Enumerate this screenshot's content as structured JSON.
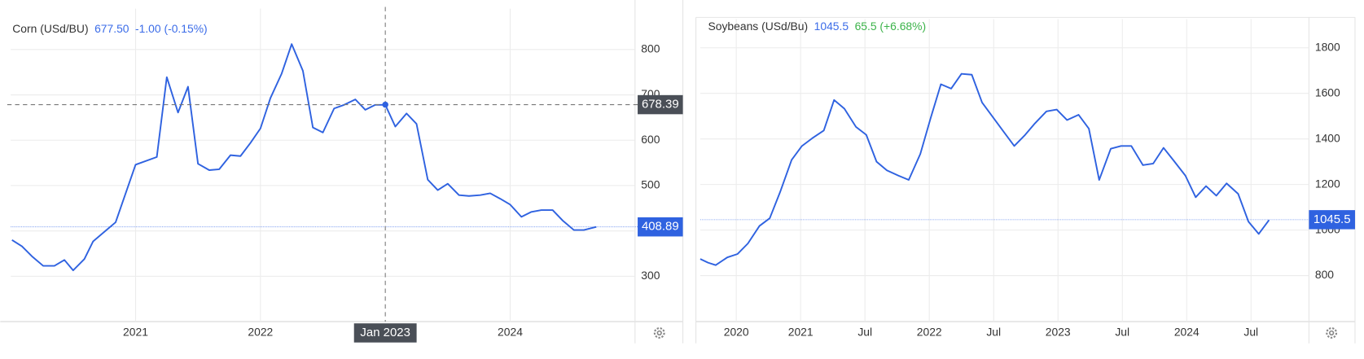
{
  "chart_data": [
    {
      "type": "line",
      "header": {
        "name": "Corn (USd/BU)",
        "price": "677.50",
        "change": "-1.00 (-0.15%)",
        "change_color": "#3b6ce8"
      },
      "color": "#2f62e0",
      "x": [
        2020.01,
        2020.09,
        2020.17,
        2020.26,
        2020.35,
        2020.43,
        2020.5,
        2020.59,
        2020.66,
        2020.75,
        2020.84,
        2021.0,
        2021.17,
        2021.25,
        2021.34,
        2021.42,
        2021.5,
        2021.59,
        2021.67,
        2021.76,
        2021.84,
        2021.92,
        2022.0,
        2022.08,
        2022.17,
        2022.25,
        2022.34,
        2022.42,
        2022.5,
        2022.59,
        2022.67,
        2022.76,
        2022.84,
        2022.92,
        2023.0,
        2023.08,
        2023.17,
        2023.25,
        2023.34,
        2023.42,
        2023.5,
        2023.59,
        2023.67,
        2023.76,
        2023.84,
        2023.92,
        2024.0,
        2024.09,
        2024.17,
        2024.25,
        2024.34,
        2024.42,
        2024.51,
        2024.59,
        2024.69
      ],
      "values": [
        380,
        366,
        344,
        323,
        323,
        336,
        313,
        338,
        377,
        398,
        419,
        546,
        563,
        739,
        661,
        718,
        548,
        534,
        536,
        567,
        565,
        594,
        626,
        693,
        747,
        812,
        753,
        628,
        617,
        670,
        678,
        690,
        667,
        678,
        678,
        630,
        659,
        636,
        513,
        490,
        504,
        479,
        477,
        479,
        483,
        471,
        458,
        431,
        442,
        446,
        446,
        423,
        402,
        402,
        409
      ],
      "xlim": [
        2020,
        2025
      ],
      "xticks": [
        2021,
        2022,
        2024
      ],
      "ylim": [
        200,
        890
      ],
      "yticks": [
        300,
        400,
        500,
        600,
        700,
        800
      ],
      "grid": true,
      "last_value": 408.89,
      "crosshair": {
        "x": 2023.0,
        "label": "Jan 2023",
        "value": 678.39
      }
    },
    {
      "type": "line",
      "header": {
        "name": "Soybeans (USd/Bu)",
        "price": "1045.5",
        "change": "65.5 (+6.68%)",
        "change_color": "#3cb34a"
      },
      "color": "#2f62e0",
      "x": [
        2020.22,
        2020.28,
        2020.34,
        2020.43,
        2020.51,
        2020.59,
        2020.68,
        2020.76,
        2020.84,
        2020.93,
        2021.01,
        2021.09,
        2021.18,
        2021.26,
        2021.34,
        2021.43,
        2021.51,
        2021.59,
        2021.67,
        2021.76,
        2021.84,
        2021.93,
        2022.01,
        2022.09,
        2022.17,
        2022.25,
        2022.33,
        2022.41,
        2022.5,
        2022.58,
        2022.66,
        2022.74,
        2022.82,
        2022.91,
        2022.99,
        2023.07,
        2023.16,
        2023.24,
        2023.32,
        2023.41,
        2023.49,
        2023.57,
        2023.66,
        2023.74,
        2023.82,
        2023.9,
        2023.99,
        2024.07,
        2024.15,
        2024.23,
        2024.31,
        2024.4,
        2024.48,
        2024.56,
        2024.64
      ],
      "values": [
        873,
        857,
        846,
        880,
        895,
        941,
        1018,
        1052,
        1166,
        1308,
        1369,
        1403,
        1437,
        1571,
        1533,
        1453,
        1418,
        1300,
        1262,
        1239,
        1220,
        1334,
        1491,
        1640,
        1621,
        1686,
        1682,
        1560,
        1491,
        1430,
        1369,
        1415,
        1468,
        1521,
        1529,
        1483,
        1506,
        1445,
        1220,
        1357,
        1369,
        1369,
        1285,
        1292,
        1361,
        1304,
        1239,
        1144,
        1193,
        1151,
        1205,
        1159,
        1037,
        983,
        1044
      ],
      "xlim": [
        2020.22,
        2024.95
      ],
      "xticks": [
        {
          "value": 2020.5,
          "label": "2020"
        },
        2021,
        {
          "value": 2021.5,
          "label": "Jul"
        },
        2022,
        {
          "value": 2022.5,
          "label": "Jul"
        },
        2023,
        {
          "value": 2023.5,
          "label": "Jul"
        },
        2024,
        {
          "value": 2024.5,
          "label": "Jul"
        }
      ],
      "ylim": [
        598,
        1926
      ],
      "yticks": [
        800,
        1000,
        1200,
        1400,
        1600,
        1800
      ],
      "grid": true,
      "last_value": 1045.5
    }
  ]
}
